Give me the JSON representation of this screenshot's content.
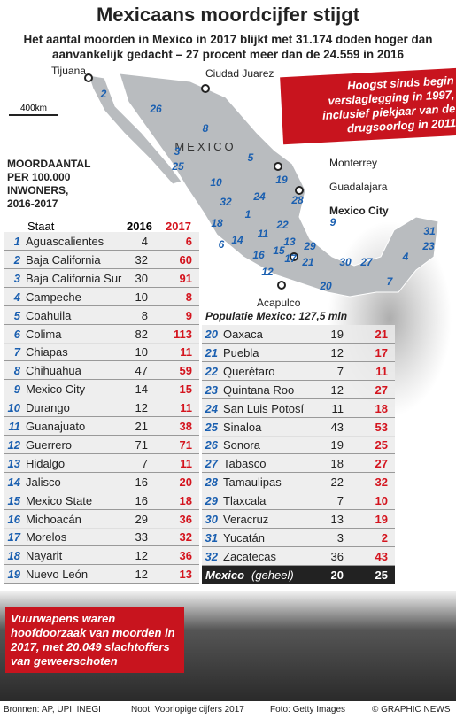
{
  "header": {
    "title": "Mexicaans moordcijfer stijgt",
    "subtitle": "Het aantal moorden in Mexico in 2017 blijkt met 31.174 doden hoger dan aanvankelijk gedacht – 27 procent meer dan de 24.559 in 2016"
  },
  "map": {
    "country": "MEXICO",
    "scale": "400km",
    "population": "Populatie Mexico: 127,5 mln",
    "cities": [
      "Tijuana",
      "Ciudad Juarez",
      "Monterrey",
      "Guadalajara",
      "Mexico City",
      "Acapulco"
    ],
    "state_labels": [
      2,
      26,
      8,
      3,
      25,
      5,
      10,
      19,
      24,
      32,
      28,
      1,
      18,
      11,
      22,
      14,
      6,
      16,
      15,
      13,
      29,
      17,
      21,
      12,
      20,
      30,
      27,
      4,
      31,
      23,
      9,
      7
    ]
  },
  "callout": "Hoogst sinds begin verslaglegging in 1997, inclusief piekjaar van de drugsoorlog in 2011",
  "legend": "MOORDAANTAL PER 100.000 INWONERS, 2016-2017",
  "table": {
    "columns": [
      "Staat",
      "2016",
      "2017"
    ],
    "rows": [
      [
        1,
        "Aguascalientes",
        4,
        6
      ],
      [
        2,
        "Baja California",
        32,
        60
      ],
      [
        3,
        "Baja California Sur",
        30,
        91
      ],
      [
        4,
        "Campeche",
        10,
        8
      ],
      [
        5,
        "Coahuila",
        8,
        9
      ],
      [
        6,
        "Colima",
        82,
        113
      ],
      [
        7,
        "Chiapas",
        10,
        11
      ],
      [
        8,
        "Chihuahua",
        47,
        59
      ],
      [
        9,
        "Mexico City",
        14,
        15
      ],
      [
        10,
        "Durango",
        12,
        11
      ],
      [
        11,
        "Guanajuato",
        21,
        38
      ],
      [
        12,
        "Guerrero",
        71,
        71
      ],
      [
        13,
        "Hidalgo",
        7,
        11
      ],
      [
        14,
        "Jalisco",
        16,
        20
      ],
      [
        15,
        "Mexico State",
        16,
        18
      ],
      [
        16,
        "Michoacán",
        29,
        36
      ],
      [
        17,
        "Morelos",
        33,
        32
      ],
      [
        18,
        "Nayarit",
        12,
        36
      ],
      [
        19,
        "Nuevo León",
        12,
        13
      ],
      [
        20,
        "Oaxaca",
        19,
        21
      ],
      [
        21,
        "Puebla",
        12,
        17
      ],
      [
        22,
        "Querétaro",
        7,
        11
      ],
      [
        23,
        "Quintana Roo",
        12,
        27
      ],
      [
        24,
        "San Luis Potosí",
        11,
        18
      ],
      [
        25,
        "Sinaloa",
        43,
        53
      ],
      [
        26,
        "Sonora",
        19,
        25
      ],
      [
        27,
        "Tabasco",
        18,
        27
      ],
      [
        28,
        "Tamaulipas",
        22,
        32
      ],
      [
        29,
        "Tlaxcala",
        7,
        10
      ],
      [
        30,
        "Veracruz",
        13,
        19
      ],
      [
        31,
        "Yucatán",
        3,
        2
      ],
      [
        32,
        "Zacatecas",
        36,
        43
      ]
    ],
    "total": {
      "name": "Mexico",
      "qualifier": "(geheel)",
      "v2016": 20,
      "v2017": 25
    }
  },
  "photo_note": "Vuurwapens waren hoofdoorzaak van moorden in 2017, met 20.049 slachtoffers van geweerschoten",
  "footer": {
    "sources": "Bronnen: AP, UPI, INEGI",
    "note": "Noot: Voorlopige cijfers 2017",
    "photo": "Foto: Getty Images",
    "credit": "© GRAPHIC NEWS"
  }
}
